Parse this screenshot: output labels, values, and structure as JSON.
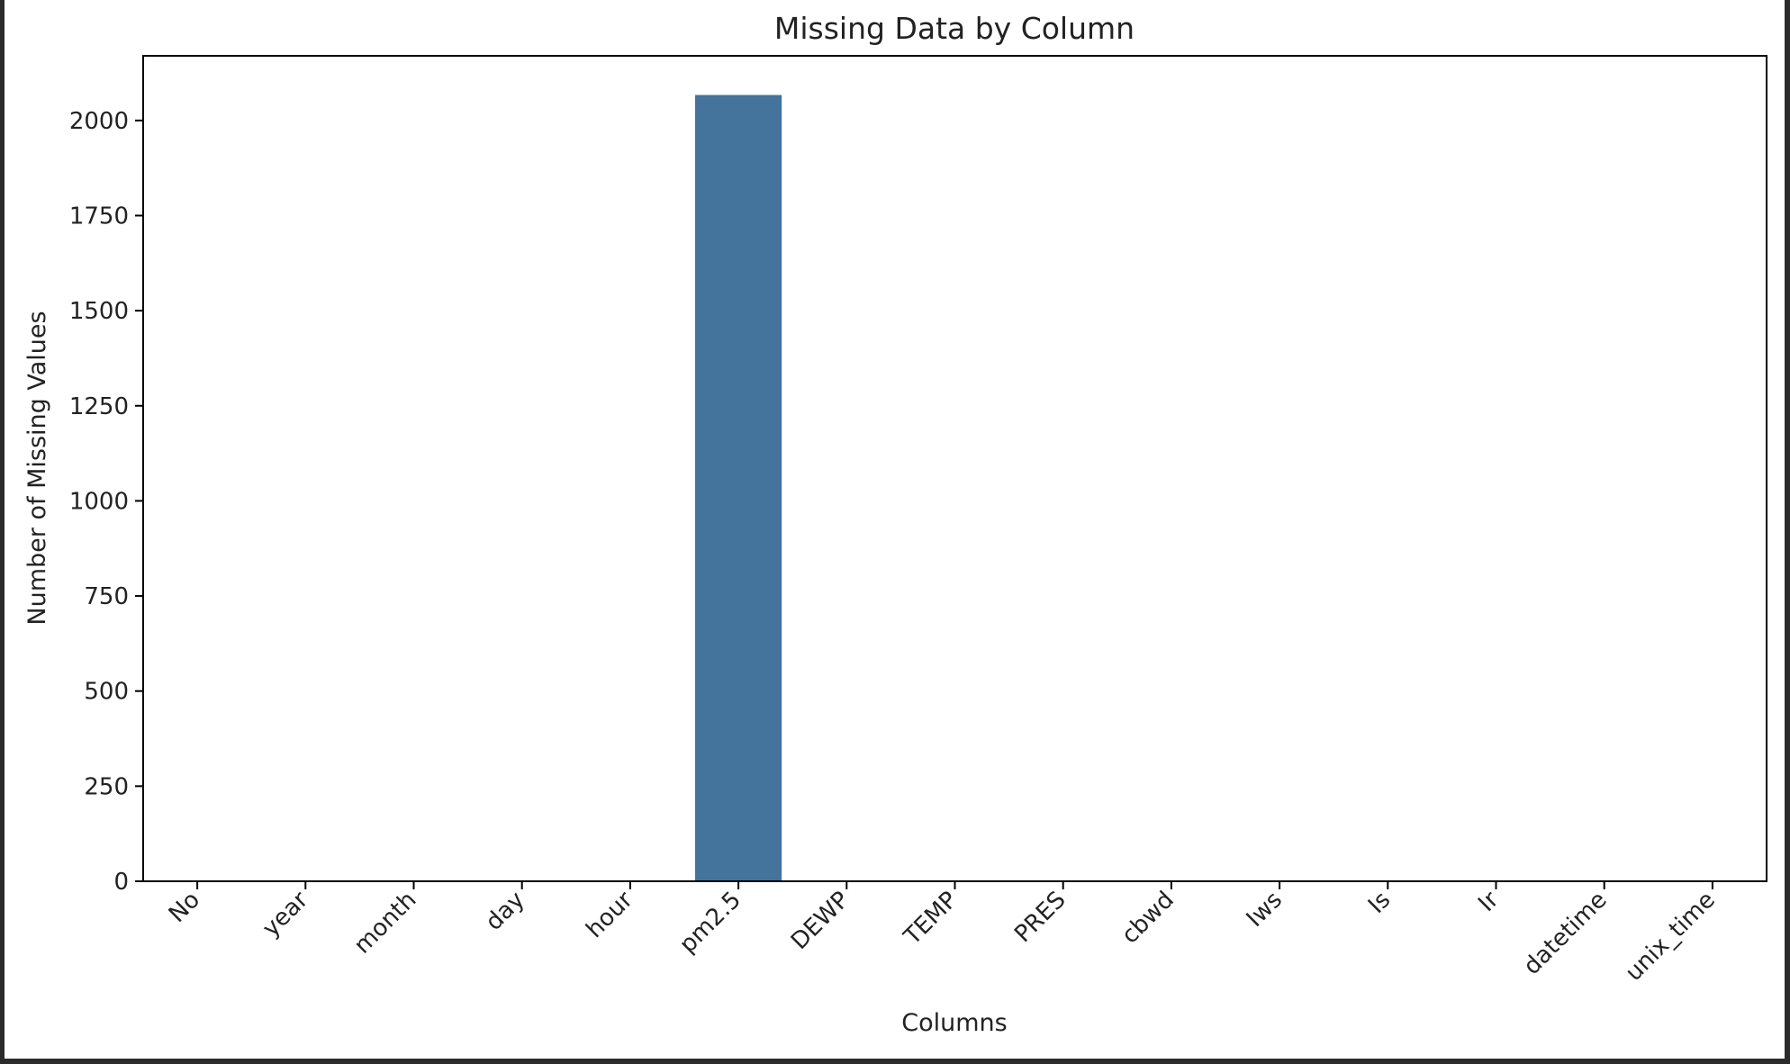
{
  "chart_data": {
    "type": "bar",
    "title": "Missing Data by Column",
    "xlabel": "Columns",
    "ylabel": "Number of Missing Values",
    "categories": [
      "No",
      "year",
      "month",
      "day",
      "hour",
      "pm2.5",
      "DEWP",
      "TEMP",
      "PRES",
      "cbwd",
      "Iws",
      "Is",
      "Ir",
      "datetime",
      "unix_time"
    ],
    "values": [
      0,
      0,
      0,
      0,
      0,
      2067,
      0,
      0,
      0,
      0,
      0,
      0,
      0,
      0,
      0
    ],
    "ylim": [
      0,
      2170
    ],
    "yticks": [
      0,
      250,
      500,
      750,
      1000,
      1250,
      1500,
      1750,
      2000
    ],
    "grid": false,
    "legend": "none",
    "bar_color": "#44739c",
    "xtick_rotation_deg": 45
  }
}
